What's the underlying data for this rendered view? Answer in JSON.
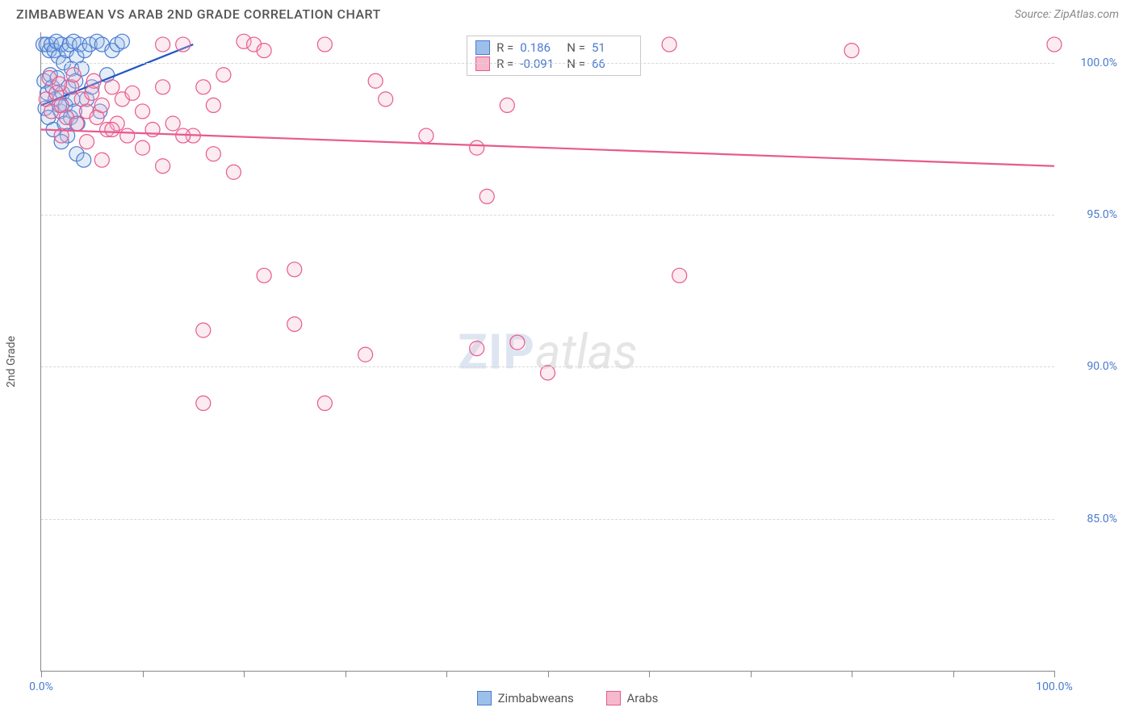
{
  "title": "ZIMBABWEAN VS ARAB 2ND GRADE CORRELATION CHART",
  "source": "Source: ZipAtlas.com",
  "y_axis_label": "2nd Grade",
  "watermark": {
    "part1": "ZIP",
    "part2": "atlas"
  },
  "chart": {
    "type": "scatter",
    "background_color": "#ffffff",
    "grid_color": "#d8d8d8",
    "axis_color": "#888888",
    "tick_label_color": "#4a7bd0",
    "tick_label_fontsize": 14,
    "xlim": [
      0,
      100
    ],
    "ylim": [
      80,
      101
    ],
    "xticks": [
      0,
      10,
      20,
      30,
      40,
      50,
      60,
      70,
      80,
      90,
      100
    ],
    "xtick_labels": {
      "0": "0.0%",
      "100": "100.0%"
    },
    "yticks": [
      85,
      90,
      95,
      100
    ],
    "ytick_labels": {
      "85": "85.0%",
      "90": "90.0%",
      "95": "95.0%",
      "100": "100.0%"
    },
    "marker_radius": 9,
    "marker_stroke_width": 1.2,
    "marker_fill_opacity": 0.28,
    "trend_line_width": 2.2
  },
  "series": [
    {
      "name": "Zimbabweans",
      "color_stroke": "#4a7bd0",
      "color_fill": "#9cc0ea",
      "trend_color": "#2256c4",
      "R": "0.186",
      "N": "51",
      "trend": {
        "x1": 0,
        "y1": 98.6,
        "x2": 15,
        "y2": 100.6
      },
      "points": [
        [
          0.2,
          100.6
        ],
        [
          0.5,
          100.6
        ],
        [
          0.8,
          100.4
        ],
        [
          1.0,
          100.6
        ],
        [
          1.3,
          100.4
        ],
        [
          1.5,
          100.7
        ],
        [
          1.7,
          100.2
        ],
        [
          2.0,
          100.6
        ],
        [
          2.2,
          100.0
        ],
        [
          2.5,
          100.4
        ],
        [
          2.8,
          100.6
        ],
        [
          3.0,
          99.8
        ],
        [
          3.2,
          100.7
        ],
        [
          3.5,
          100.2
        ],
        [
          0.3,
          99.4
        ],
        [
          0.6,
          99.0
        ],
        [
          0.9,
          99.6
        ],
        [
          1.1,
          99.2
        ],
        [
          1.4,
          98.8
        ],
        [
          1.6,
          99.5
        ],
        [
          1.9,
          98.4
        ],
        [
          2.1,
          99.0
        ],
        [
          2.4,
          98.6
        ],
        [
          2.7,
          99.2
        ],
        [
          2.9,
          98.2
        ],
        [
          3.1,
          98.8
        ],
        [
          3.4,
          99.4
        ],
        [
          3.6,
          98.0
        ],
        [
          0.4,
          98.5
        ],
        [
          0.7,
          98.2
        ],
        [
          1.2,
          97.8
        ],
        [
          1.8,
          98.6
        ],
        [
          2.3,
          98.0
        ],
        [
          2.6,
          97.6
        ],
        [
          3.3,
          98.4
        ],
        [
          3.8,
          100.6
        ],
        [
          4.0,
          99.8
        ],
        [
          4.3,
          100.4
        ],
        [
          4.5,
          98.8
        ],
        [
          4.8,
          100.6
        ],
        [
          5.0,
          99.2
        ],
        [
          5.5,
          100.7
        ],
        [
          5.8,
          98.4
        ],
        [
          6.0,
          100.6
        ],
        [
          6.5,
          99.6
        ],
        [
          7.0,
          100.4
        ],
        [
          7.5,
          100.6
        ],
        [
          8.0,
          100.7
        ],
        [
          3.5,
          97.0
        ],
        [
          4.2,
          96.8
        ],
        [
          2.0,
          97.4
        ]
      ]
    },
    {
      "name": "Arabs",
      "color_stroke": "#e75a8d",
      "color_fill": "#f5b8cc",
      "trend_color": "#e75a8d",
      "R": "-0.091",
      "N": "66",
      "trend": {
        "x1": 0,
        "y1": 97.8,
        "x2": 100,
        "y2": 96.6
      },
      "points": [
        [
          12.0,
          100.6
        ],
        [
          14.0,
          100.6
        ],
        [
          20.0,
          100.7
        ],
        [
          21.0,
          100.6
        ],
        [
          22.0,
          100.4
        ],
        [
          28.0,
          100.6
        ],
        [
          45.0,
          100.6
        ],
        [
          62.0,
          100.6
        ],
        [
          80.0,
          100.4
        ],
        [
          100.0,
          100.6
        ],
        [
          0.5,
          98.8
        ],
        [
          1.0,
          98.4
        ],
        [
          1.5,
          99.0
        ],
        [
          2.0,
          98.6
        ],
        [
          2.5,
          98.2
        ],
        [
          3.0,
          99.2
        ],
        [
          3.5,
          98.0
        ],
        [
          4.0,
          98.8
        ],
        [
          4.5,
          98.4
        ],
        [
          5.0,
          99.0
        ],
        [
          5.5,
          98.2
        ],
        [
          6.0,
          98.6
        ],
        [
          6.5,
          97.8
        ],
        [
          7.0,
          99.2
        ],
        [
          7.5,
          98.0
        ],
        [
          8.0,
          98.8
        ],
        [
          8.5,
          97.6
        ],
        [
          9.0,
          99.0
        ],
        [
          10.0,
          98.4
        ],
        [
          11.0,
          97.8
        ],
        [
          12.0,
          99.2
        ],
        [
          13.0,
          98.0
        ],
        [
          15.0,
          97.6
        ],
        [
          16.0,
          99.2
        ],
        [
          17.0,
          98.6
        ],
        [
          18.0,
          99.6
        ],
        [
          2.0,
          97.6
        ],
        [
          4.5,
          97.4
        ],
        [
          7.0,
          97.8
        ],
        [
          10.0,
          97.2
        ],
        [
          14.0,
          97.6
        ],
        [
          17.0,
          97.0
        ],
        [
          6.0,
          96.8
        ],
        [
          12.0,
          96.6
        ],
        [
          19.0,
          96.4
        ],
        [
          33.0,
          99.4
        ],
        [
          34.0,
          98.8
        ],
        [
          38.0,
          97.6
        ],
        [
          43.0,
          97.2
        ],
        [
          46.0,
          98.6
        ],
        [
          44.0,
          95.6
        ],
        [
          22.0,
          93.0
        ],
        [
          25.0,
          93.2
        ],
        [
          63.0,
          93.0
        ],
        [
          16.0,
          91.2
        ],
        [
          25.0,
          91.4
        ],
        [
          32.0,
          90.4
        ],
        [
          43.0,
          90.6
        ],
        [
          47.0,
          90.8
        ],
        [
          50.0,
          89.8
        ],
        [
          16.0,
          88.8
        ],
        [
          28.0,
          88.8
        ],
        [
          0.8,
          99.5
        ],
        [
          1.8,
          99.3
        ],
        [
          3.2,
          99.6
        ],
        [
          5.2,
          99.4
        ]
      ]
    }
  ],
  "bottom_legend": [
    {
      "label": "Zimbabweans",
      "stroke": "#4a7bd0",
      "fill": "#9cc0ea"
    },
    {
      "label": "Arabs",
      "stroke": "#e75a8d",
      "fill": "#f5b8cc"
    }
  ]
}
